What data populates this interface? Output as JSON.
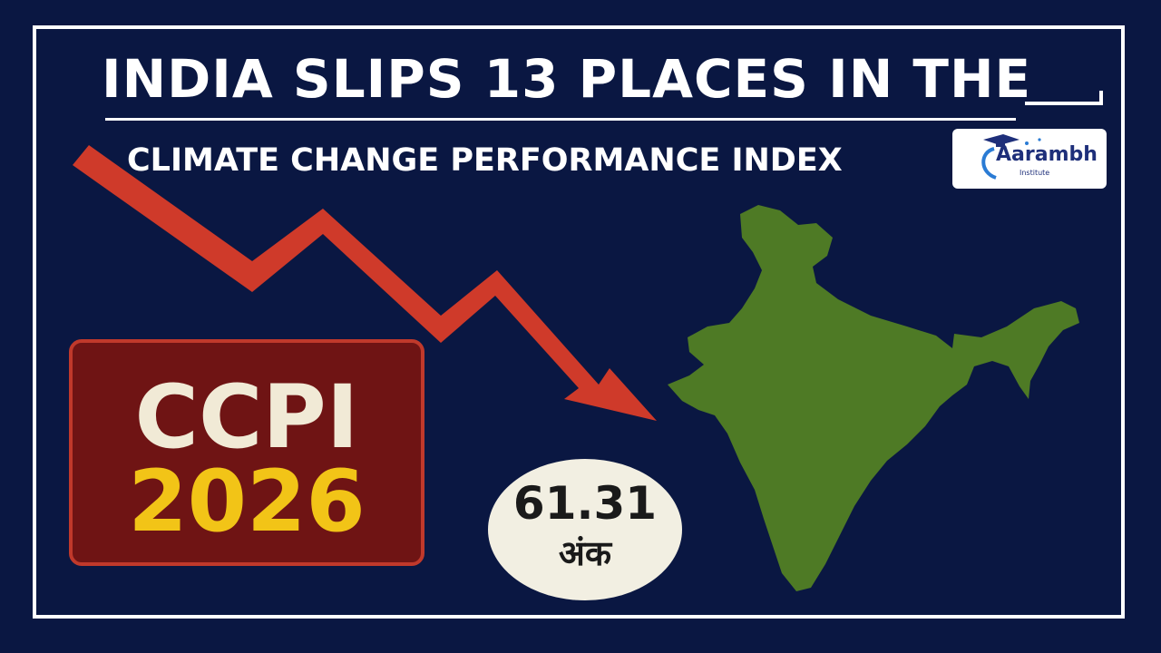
{
  "headline": {
    "line1": "INDIA SLIPS 13 PLACES IN THE",
    "line2": "CLIMATE CHANGE PERFORMANCE INDEX"
  },
  "logo": {
    "name": "Aarambh",
    "tagline": "Institute"
  },
  "badge": {
    "label": "CCPI",
    "year": "2026"
  },
  "score": {
    "value": "61.31",
    "unit": "अंक"
  },
  "colors": {
    "background": "#0a1742",
    "arrow": "#cf3a2a",
    "map": "#4e7a25",
    "badge_fill": "#6f1414",
    "year": "#f2c417"
  },
  "icons": {
    "trend": "downward-trend-arrow-icon",
    "map": "india-map-icon",
    "logo_cap": "graduation-cap-icon"
  }
}
